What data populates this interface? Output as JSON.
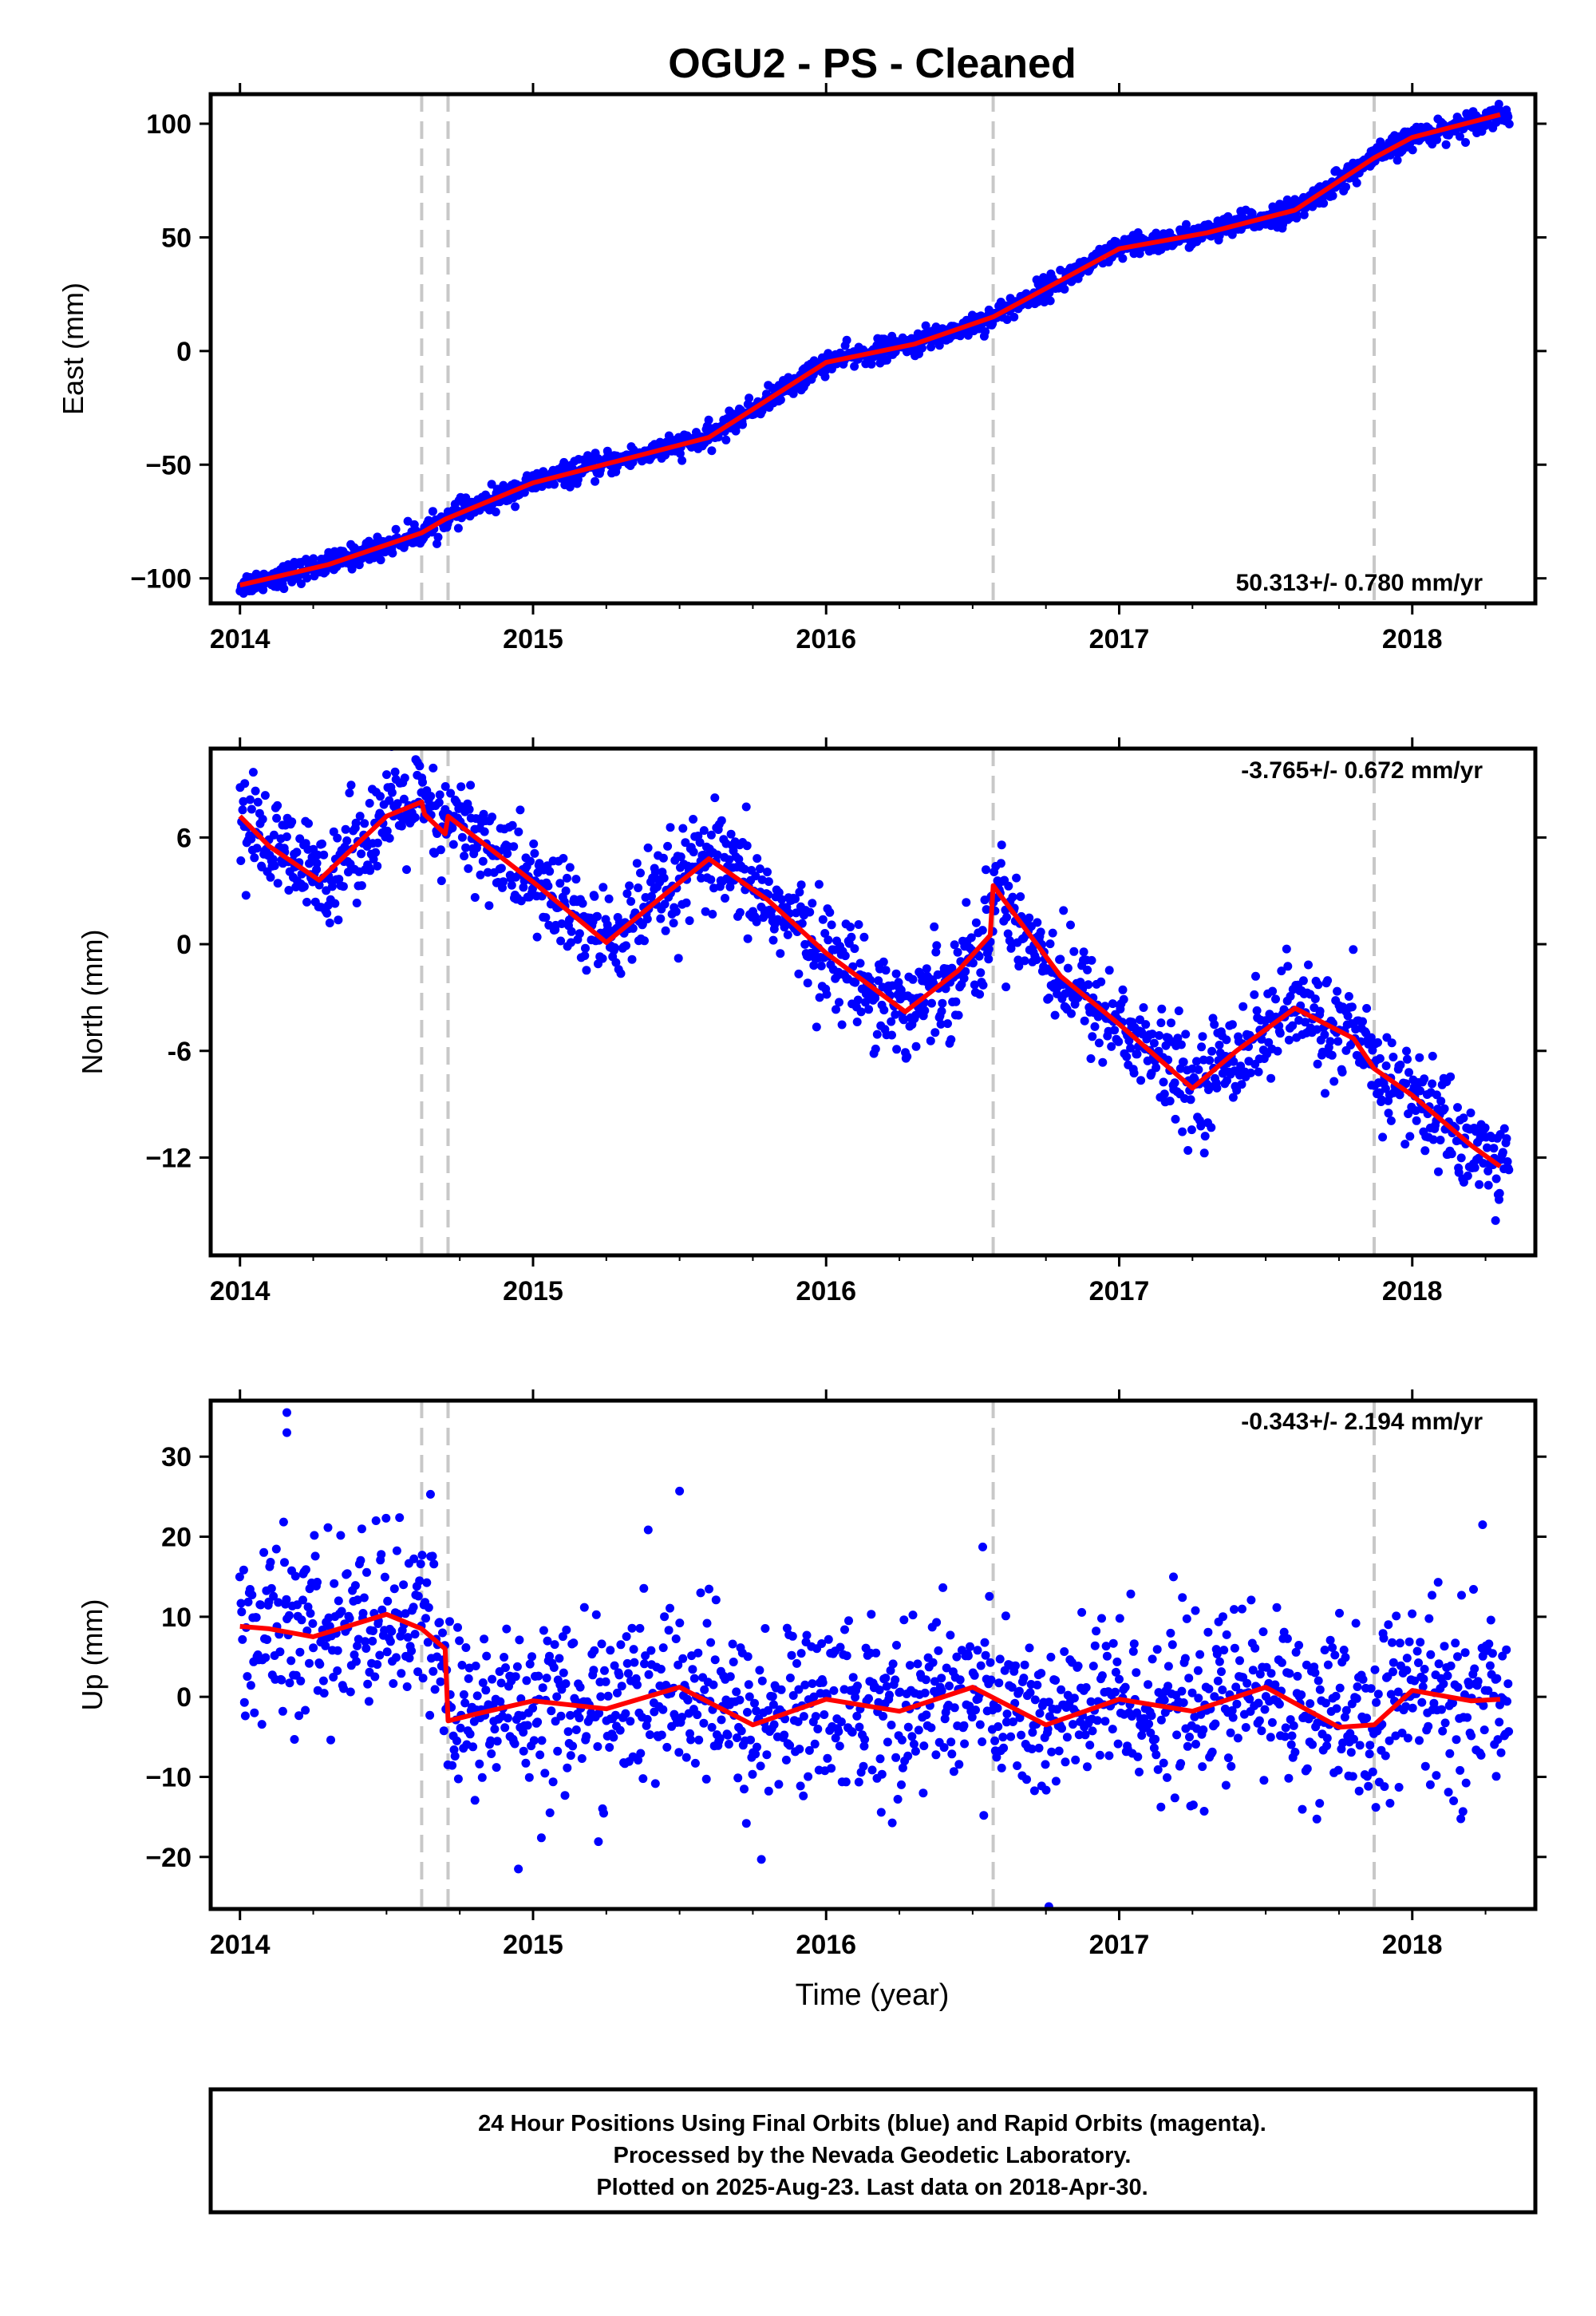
{
  "title": "OGU2  - PS - Cleaned",
  "xlabel": "Time (year)",
  "footer": {
    "line1": "24 Hour Positions Using Final Orbits (blue) and Rapid Orbits (magenta).",
    "line2": "Processed by the Nevada Geodetic Laboratory.",
    "line3": "Plotted on 2025-Aug-23. Last data on 2018-Apr-30."
  },
  "colors": {
    "data": "#0000ff",
    "model": "#ff0000",
    "steps": "#c8c8c8",
    "frame": "#000000"
  },
  "chart_data": [
    {
      "type": "scatter",
      "component": "east",
      "ylabel": "East (mm)",
      "rate_label": "50.313+/- 0.780 mm/yr",
      "xlim": [
        2013.9,
        2018.42
      ],
      "ylim": [
        -111,
        113
      ],
      "xticks": [
        2014,
        2015,
        2016,
        2017,
        2018
      ],
      "yticks": [
        -100,
        -50,
        0,
        50,
        100
      ],
      "ytick_labels": [
        "−100",
        "−50",
        "0",
        "50",
        "100"
      ],
      "step_lines": [
        2014.62,
        2014.71,
        2016.57,
        2017.87
      ],
      "model": {
        "x": [
          2014.0,
          2014.3,
          2014.62,
          2014.7,
          2015.0,
          2015.3,
          2015.6,
          2016.0,
          2016.3,
          2016.57,
          2017.0,
          2017.3,
          2017.6,
          2017.87,
          2018.0,
          2018.3
        ],
        "y": [
          -103,
          -94,
          -80,
          -74,
          -58,
          -48,
          -38,
          -5,
          3,
          15,
          45,
          52,
          62,
          85,
          94,
          104
        ]
      },
      "scatter_spread": 2.5,
      "scatter_count": 1500
    },
    {
      "type": "scatter",
      "component": "north",
      "ylabel": "North (mm)",
      "rate_label": "-3.765+/- 0.672 mm/yr",
      "xlim": [
        2013.9,
        2018.42
      ],
      "ylim": [
        -17.5,
        11
      ],
      "xticks": [
        2014,
        2015,
        2016,
        2017,
        2018
      ],
      "yticks": [
        -12,
        -6,
        0,
        6
      ],
      "ytick_labels": [
        "−12",
        "-6",
        "0",
        "6"
      ],
      "step_lines": [
        2014.62,
        2014.71,
        2016.57,
        2017.87
      ],
      "model": {
        "x": [
          2014.0,
          2014.1,
          2014.27,
          2014.5,
          2014.62,
          2014.63,
          2014.7,
          2014.71,
          2015.0,
          2015.25,
          2015.45,
          2015.6,
          2015.8,
          2016.0,
          2016.27,
          2016.45,
          2016.56,
          2016.57,
          2016.8,
          2017.0,
          2017.25,
          2017.4,
          2017.6,
          2017.8,
          2017.87,
          2018.0,
          2018.2,
          2018.3
        ],
        "y": [
          7.2,
          5.5,
          3.6,
          7.2,
          8.0,
          7.3,
          6.2,
          7.2,
          3.5,
          0.1,
          2.8,
          4.8,
          2.5,
          -0.5,
          -3.8,
          -1.5,
          0.5,
          3.3,
          -1.8,
          -4.5,
          -8.1,
          -6.0,
          -3.6,
          -5.3,
          -7.0,
          -8.5,
          -11.3,
          -12.5
        ]
      },
      "scatter_spread": 1.4,
      "scatter_count": 1500
    },
    {
      "type": "scatter",
      "component": "up",
      "ylabel": "Up (mm)",
      "rate_label": "-0.343+/- 2.194 mm/yr",
      "xlim": [
        2013.9,
        2018.42
      ],
      "ylim": [
        -26.5,
        37
      ],
      "xticks": [
        2014,
        2015,
        2016,
        2017,
        2018
      ],
      "yticks": [
        -20,
        -10,
        0,
        10,
        20,
        30
      ],
      "ytick_labels": [
        "−20",
        "−10",
        "0",
        "10",
        "20",
        "30"
      ],
      "step_lines": [
        2014.62,
        2014.71,
        2016.57,
        2017.87
      ],
      "model": {
        "x": [
          2014.0,
          2014.1,
          2014.25,
          2014.5,
          2014.62,
          2014.7,
          2014.71,
          2014.8,
          2015.0,
          2015.25,
          2015.5,
          2015.75,
          2016.0,
          2016.25,
          2016.5,
          2016.75,
          2017.0,
          2017.25,
          2017.5,
          2017.75,
          2017.87,
          2018.0,
          2018.2,
          2018.3
        ],
        "y": [
          8.8,
          8.5,
          7.5,
          10.3,
          8.5,
          6.0,
          -3.0,
          -2.2,
          -0.5,
          -1.5,
          1.2,
          -3.5,
          -0.3,
          -1.8,
          1.2,
          -3.5,
          -0.3,
          -1.8,
          1.2,
          -3.8,
          -3.5,
          0.8,
          -0.5,
          -0.3
        ]
      },
      "scatter_spread": 5.5,
      "scatter_count": 1400,
      "outliers": [
        {
          "x": 2014.16,
          "y": 35.5
        },
        {
          "x": 2014.16,
          "y": 33.0
        },
        {
          "x": 2014.65,
          "y": 25.3
        },
        {
          "x": 2015.5,
          "y": 25.7
        },
        {
          "x": 2016.76,
          "y": -26.2
        },
        {
          "x": 2018.24,
          "y": 21.5
        },
        {
          "x": 2014.95,
          "y": -21.5
        }
      ]
    }
  ]
}
